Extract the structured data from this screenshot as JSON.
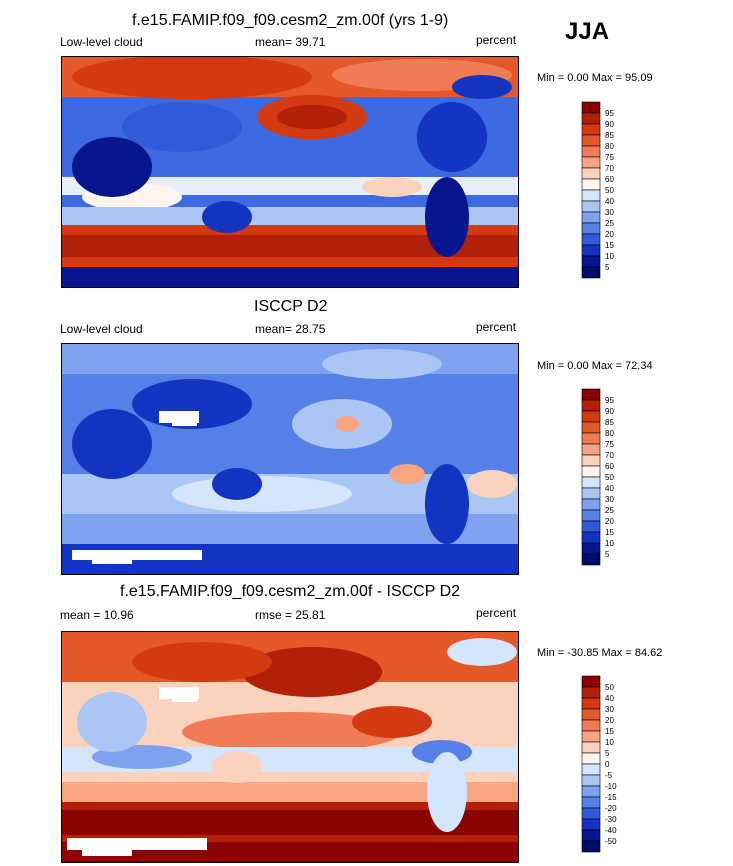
{
  "season": "JJA",
  "panels": [
    {
      "title": "f.e15.FAMIP.f09_f09.cesm2_zm.00f (yrs 1-9)",
      "left_label": "Low-level cloud",
      "stat_label": "mean=",
      "stat_value": "39.71",
      "unit": "percent",
      "minmax": "Min =   0.00 Max =  95.09",
      "colorbar_levels": [
        "95",
        "90",
        "85",
        "80",
        "75",
        "70",
        "60",
        "50",
        "40",
        "30",
        "25",
        "20",
        "15",
        "10",
        "5"
      ],
      "colorbar_colors": [
        "#8b0000",
        "#b22008",
        "#d43a12",
        "#e4582a",
        "#f07c55",
        "#f6a482",
        "#fbd2bc",
        "#fdf5ee",
        "#d5e5fb",
        "#aac6f5",
        "#7ea2ee",
        "#5680e8",
        "#2f5ad8",
        "#1234c0",
        "#06168f",
        "#000c6a"
      ]
    },
    {
      "title": "ISCCP D2",
      "left_label": "Low-level cloud",
      "stat_label": "mean=",
      "stat_value": "28.75",
      "unit": "percent",
      "minmax": "Min =   0.00 Max =  72.34",
      "colorbar_levels": [
        "95",
        "90",
        "85",
        "80",
        "75",
        "70",
        "60",
        "50",
        "40",
        "30",
        "25",
        "20",
        "15",
        "10",
        "5"
      ],
      "colorbar_colors": [
        "#8b0000",
        "#b22008",
        "#d43a12",
        "#e4582a",
        "#f07c55",
        "#f6a482",
        "#fbd2bc",
        "#fdf5ee",
        "#d5e5fb",
        "#aac6f5",
        "#7ea2ee",
        "#5680e8",
        "#2f5ad8",
        "#1234c0",
        "#06168f",
        "#000c6a"
      ]
    },
    {
      "title": "f.e15.FAMIP.f09_f09.cesm2_zm.00f - ISCCP D2",
      "left_label": "mean =  10.96",
      "stat_label": "rmse =",
      "stat_value": "25.81",
      "unit": "percent",
      "minmax": "Min = -30.85 Max =  84.62",
      "colorbar_levels": [
        "50",
        "40",
        "30",
        "20",
        "15",
        "10",
        "5",
        "0",
        "-5",
        "-10",
        "-15",
        "-20",
        "-30",
        "-40",
        "-50"
      ],
      "colorbar_colors": [
        "#8b0000",
        "#b22008",
        "#d43a12",
        "#e4582a",
        "#f07c55",
        "#f6a482",
        "#fbd2bc",
        "#fdf5ee",
        "#d5e5fb",
        "#aac6f5",
        "#7ea2ee",
        "#5680e8",
        "#2f5ad8",
        "#1234c0",
        "#06168f",
        "#000c6a"
      ]
    }
  ]
}
